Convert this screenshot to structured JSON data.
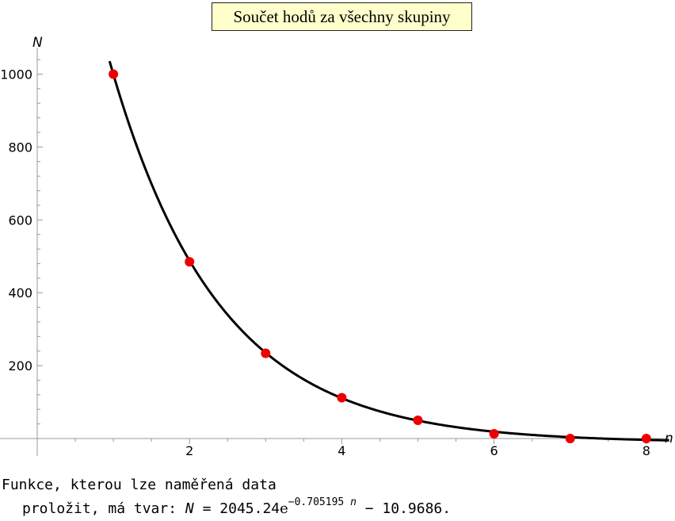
{
  "chart_data": {
    "type": "scatter",
    "title": "Součet hodů za všechny skupiny",
    "xlabel": "n",
    "ylabel": "N",
    "xlim": [
      0,
      8.3
    ],
    "ylim": [
      0,
      1060
    ],
    "x_ticks": [
      2,
      4,
      6,
      8
    ],
    "y_ticks": [
      200,
      400,
      600,
      800,
      1000
    ],
    "grid": false,
    "points": [
      {
        "x": 1,
        "y": 1000
      },
      {
        "x": 2,
        "y": 485
      },
      {
        "x": 3,
        "y": 234
      },
      {
        "x": 4,
        "y": 112
      },
      {
        "x": 5,
        "y": 50
      },
      {
        "x": 6,
        "y": 13
      },
      {
        "x": 7,
        "y": 0
      },
      {
        "x": 8,
        "y": 0
      }
    ],
    "fit": {
      "a": 2045.24,
      "b": -0.705195,
      "c": -10.9686,
      "x_start": 0.95,
      "x_end": 8.3
    },
    "colors": {
      "points": "#ee0000",
      "curve": "#000000"
    }
  },
  "caption": {
    "line1": "Funkce, kterou lze naměřená data",
    "line2_prefix": "proložit, má tvar: ",
    "lhs": "N",
    "eq": " = ",
    "coef": "2045.24",
    "e_symbol": "e",
    "exponent": "−0.705195",
    "exponent_var": "n",
    "tail": " − 10.9686."
  }
}
